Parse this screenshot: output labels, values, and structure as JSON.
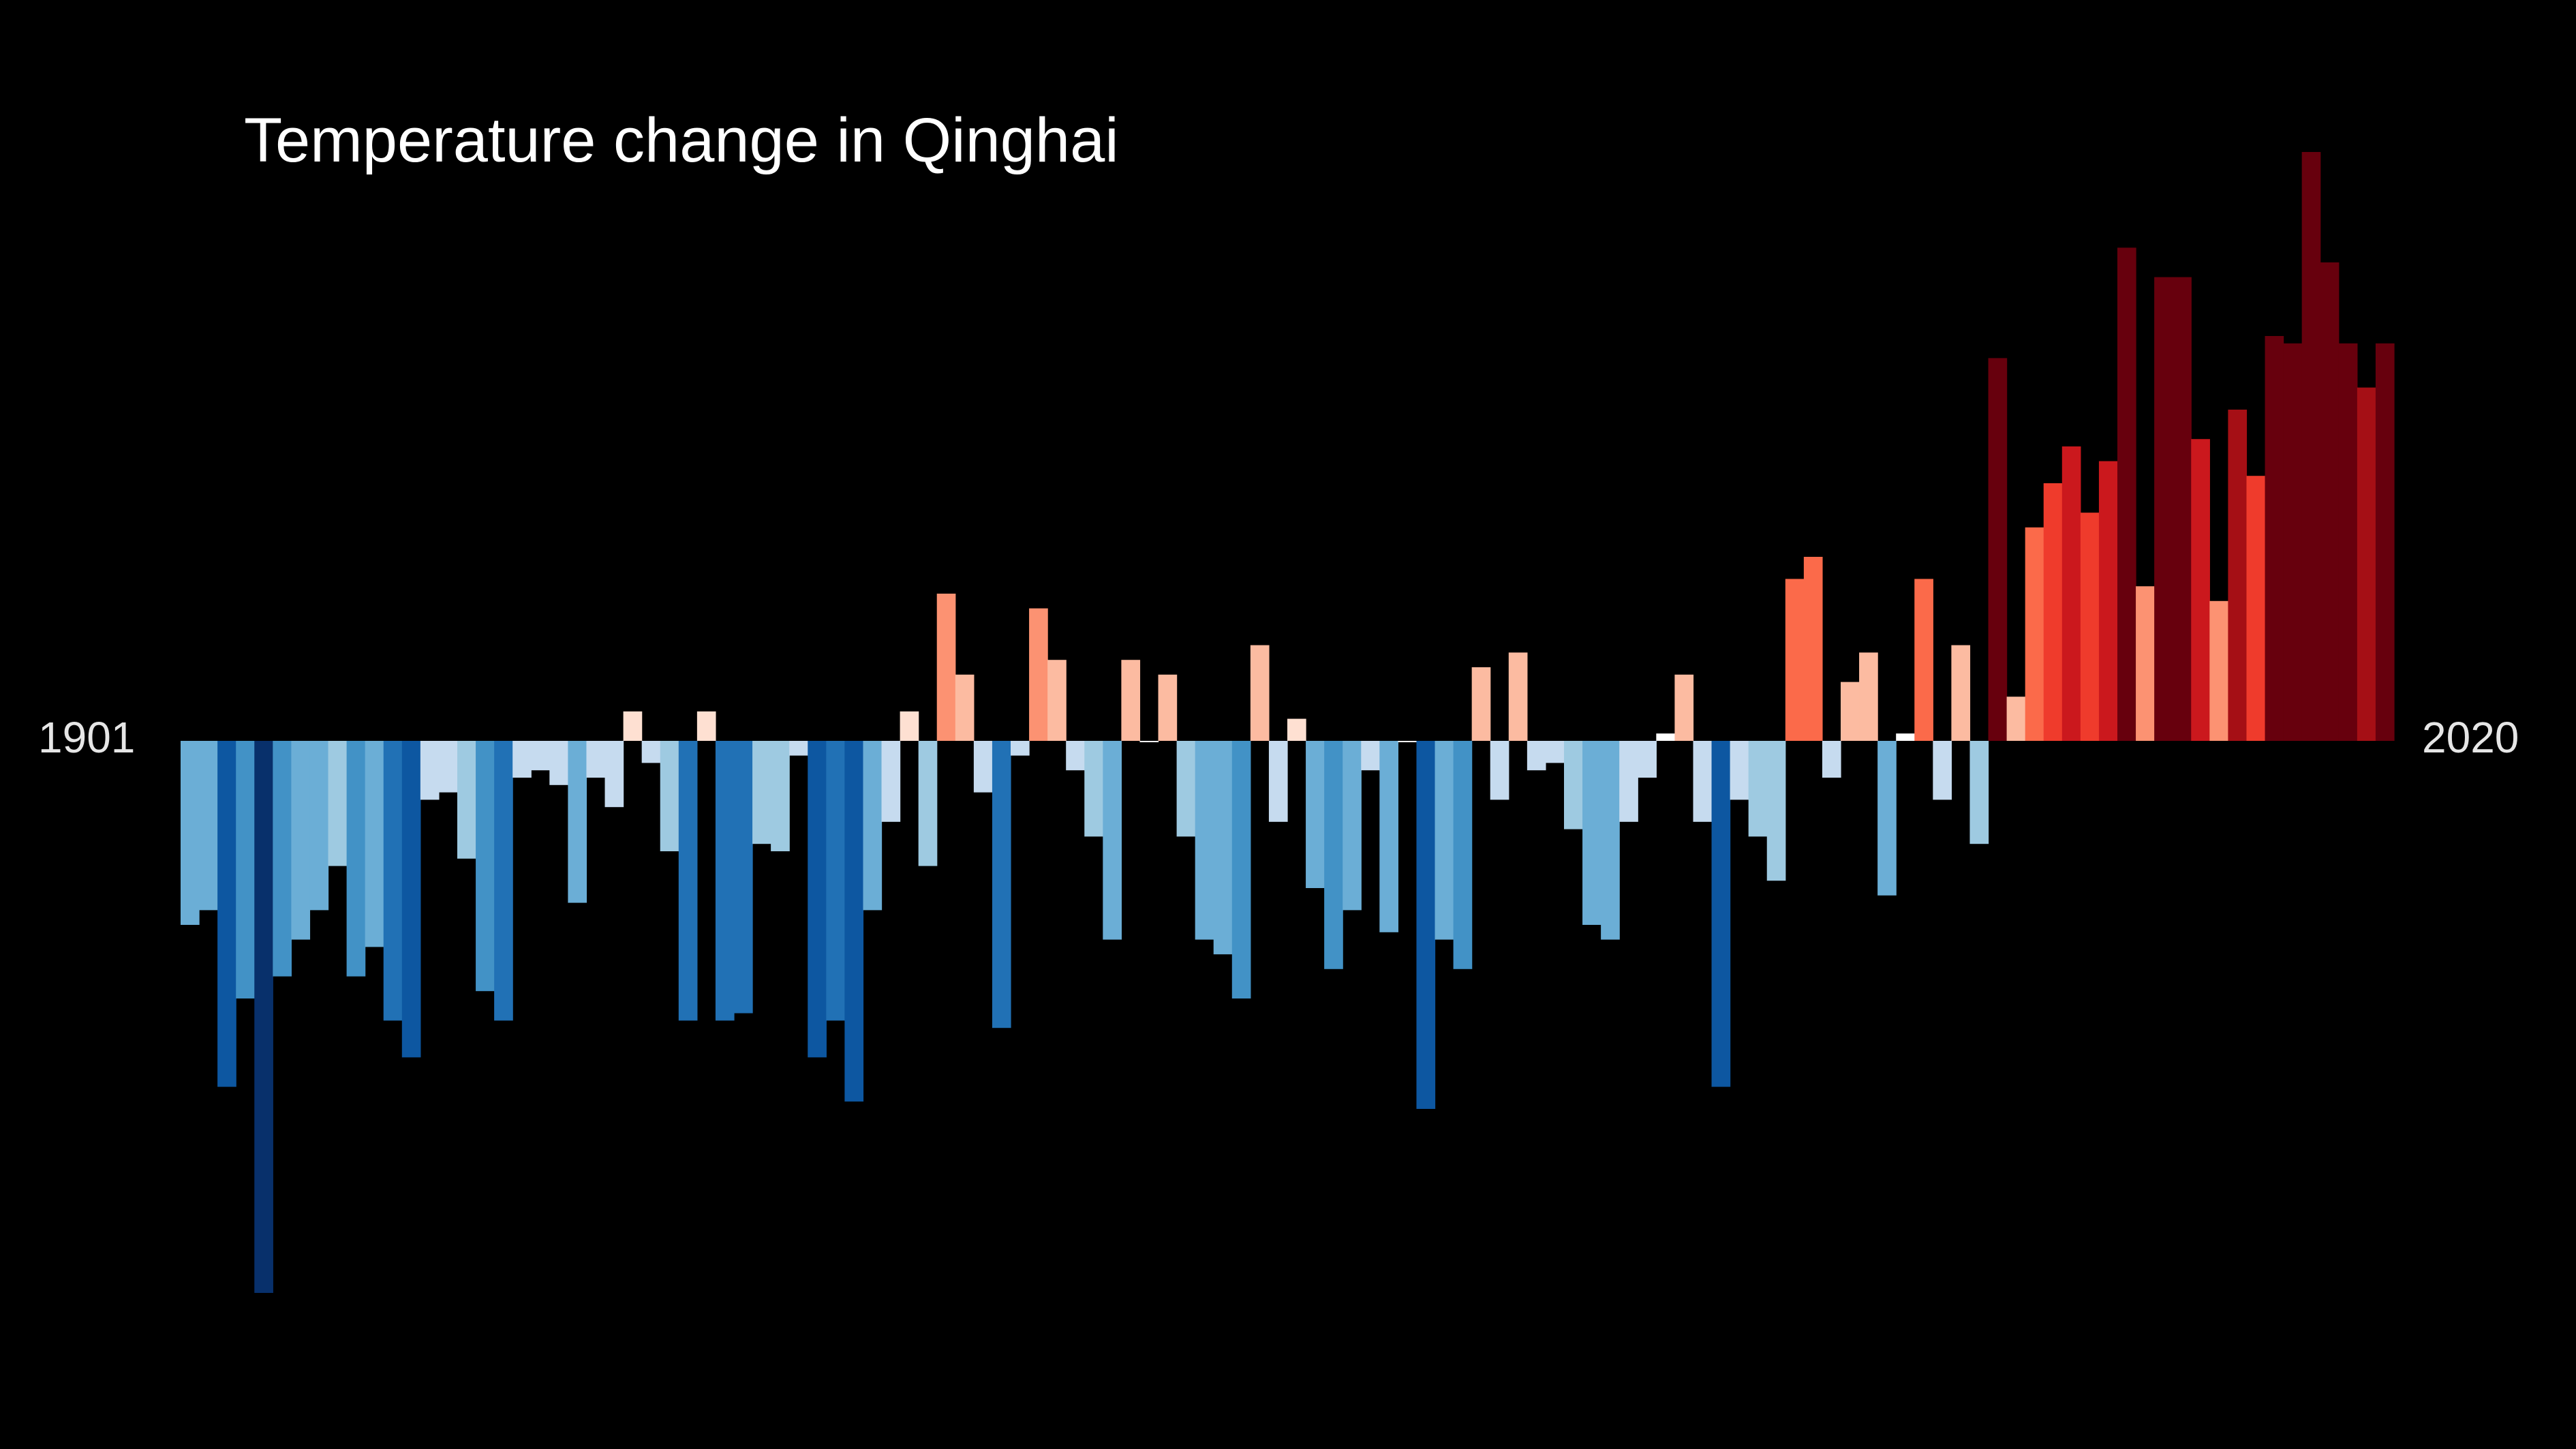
{
  "chart_data": {
    "type": "bar",
    "title": "Temperature change in Qinghai",
    "x_start_label": "1901",
    "x_end_label": "2020",
    "x_start": 1901,
    "x_end": 2020,
    "ylim": [
      -0.75,
      0.8
    ],
    "grid": false,
    "legend": "none",
    "values": [
      -0.25,
      -0.23,
      -0.47,
      -0.35,
      -0.75,
      -0.32,
      -0.27,
      -0.23,
      -0.17,
      -0.32,
      -0.28,
      -0.38,
      -0.43,
      -0.08,
      -0.07,
      -0.16,
      -0.34,
      -0.38,
      -0.05,
      -0.04,
      -0.06,
      -0.22,
      -0.05,
      -0.09,
      0.04,
      -0.03,
      -0.15,
      -0.38,
      0.04,
      -0.38,
      -0.37,
      -0.14,
      -0.15,
      -0.02,
      -0.43,
      -0.38,
      -0.49,
      -0.23,
      -0.11,
      0.04,
      -0.17,
      0.2,
      0.09,
      -0.07,
      -0.39,
      -0.02,
      0.18,
      0.11,
      -0.04,
      -0.13,
      -0.27,
      0.11,
      0.0,
      0.09,
      -0.13,
      -0.27,
      -0.29,
      -0.35,
      0.13,
      -0.11,
      0.03,
      -0.2,
      -0.31,
      -0.23,
      -0.04,
      -0.26,
      0.0,
      -0.5,
      -0.27,
      -0.31,
      0.1,
      -0.08,
      0.12,
      -0.04,
      -0.03,
      -0.12,
      -0.25,
      -0.27,
      -0.11,
      -0.05,
      0.01,
      0.09,
      -0.11,
      -0.47,
      -0.08,
      -0.13,
      -0.19,
      0.22,
      0.25,
      -0.05,
      0.08,
      0.12,
      -0.21,
      0.01,
      0.22,
      -0.08,
      0.13,
      -0.14,
      0.52,
      0.06,
      0.29,
      0.35,
      0.4,
      0.31,
      0.38,
      0.67,
      0.21,
      0.63,
      0.63,
      0.41,
      0.19,
      0.45,
      0.36,
      0.55,
      0.54,
      0.8,
      0.65,
      0.54,
      0.48,
      0.54
    ],
    "palette": {
      "blue_extreme": "#08306b",
      "blue_dark": "#0d57a1",
      "blue_mid": "#2171b5",
      "blue_med": "#4292c6",
      "blue_light": "#6baed6",
      "blue_pale": "#9ecae1",
      "blue_faint": "#c6dbef",
      "neutral": "#ffffff",
      "red_faint": "#fee0d2",
      "red_pale": "#fcbba1",
      "red_light": "#fc9272",
      "red_med": "#fb6a4a",
      "red_mid": "#ef3b2c",
      "red_dark": "#cb181d",
      "red_deep": "#a50f15",
      "red_extreme": "#67000d"
    },
    "background": "#000000"
  }
}
